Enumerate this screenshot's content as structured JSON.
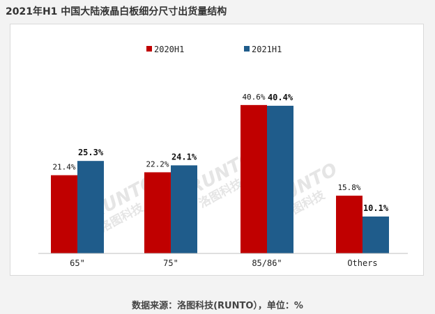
{
  "title": "2021年H1 中国大陆液晶白板细分尺寸出货量结构",
  "footer": "数据来源：洛图科技(RUNTO），单位：%",
  "watermark": {
    "brand": "RUNTO",
    "name": "洛图科技"
  },
  "chart_data": {
    "type": "bar",
    "categories": [
      "65\"",
      "75\"",
      "85/86\"",
      "Others"
    ],
    "series": [
      {
        "name": "2020H1",
        "values": [
          21.4,
          22.2,
          40.6,
          15.8
        ],
        "labels": [
          "21.4%",
          "22.2%",
          "40.6%",
          "15.8%"
        ],
        "color": "#c00000"
      },
      {
        "name": "2021H1",
        "values": [
          25.3,
          24.1,
          40.4,
          10.1
        ],
        "labels": [
          "25.3%",
          "24.1%",
          "40.4%",
          "10.1%"
        ],
        "color": "#1f5c8b"
      }
    ],
    "ylim": [
      0,
      45
    ],
    "legend": "top-center",
    "grid": false
  }
}
